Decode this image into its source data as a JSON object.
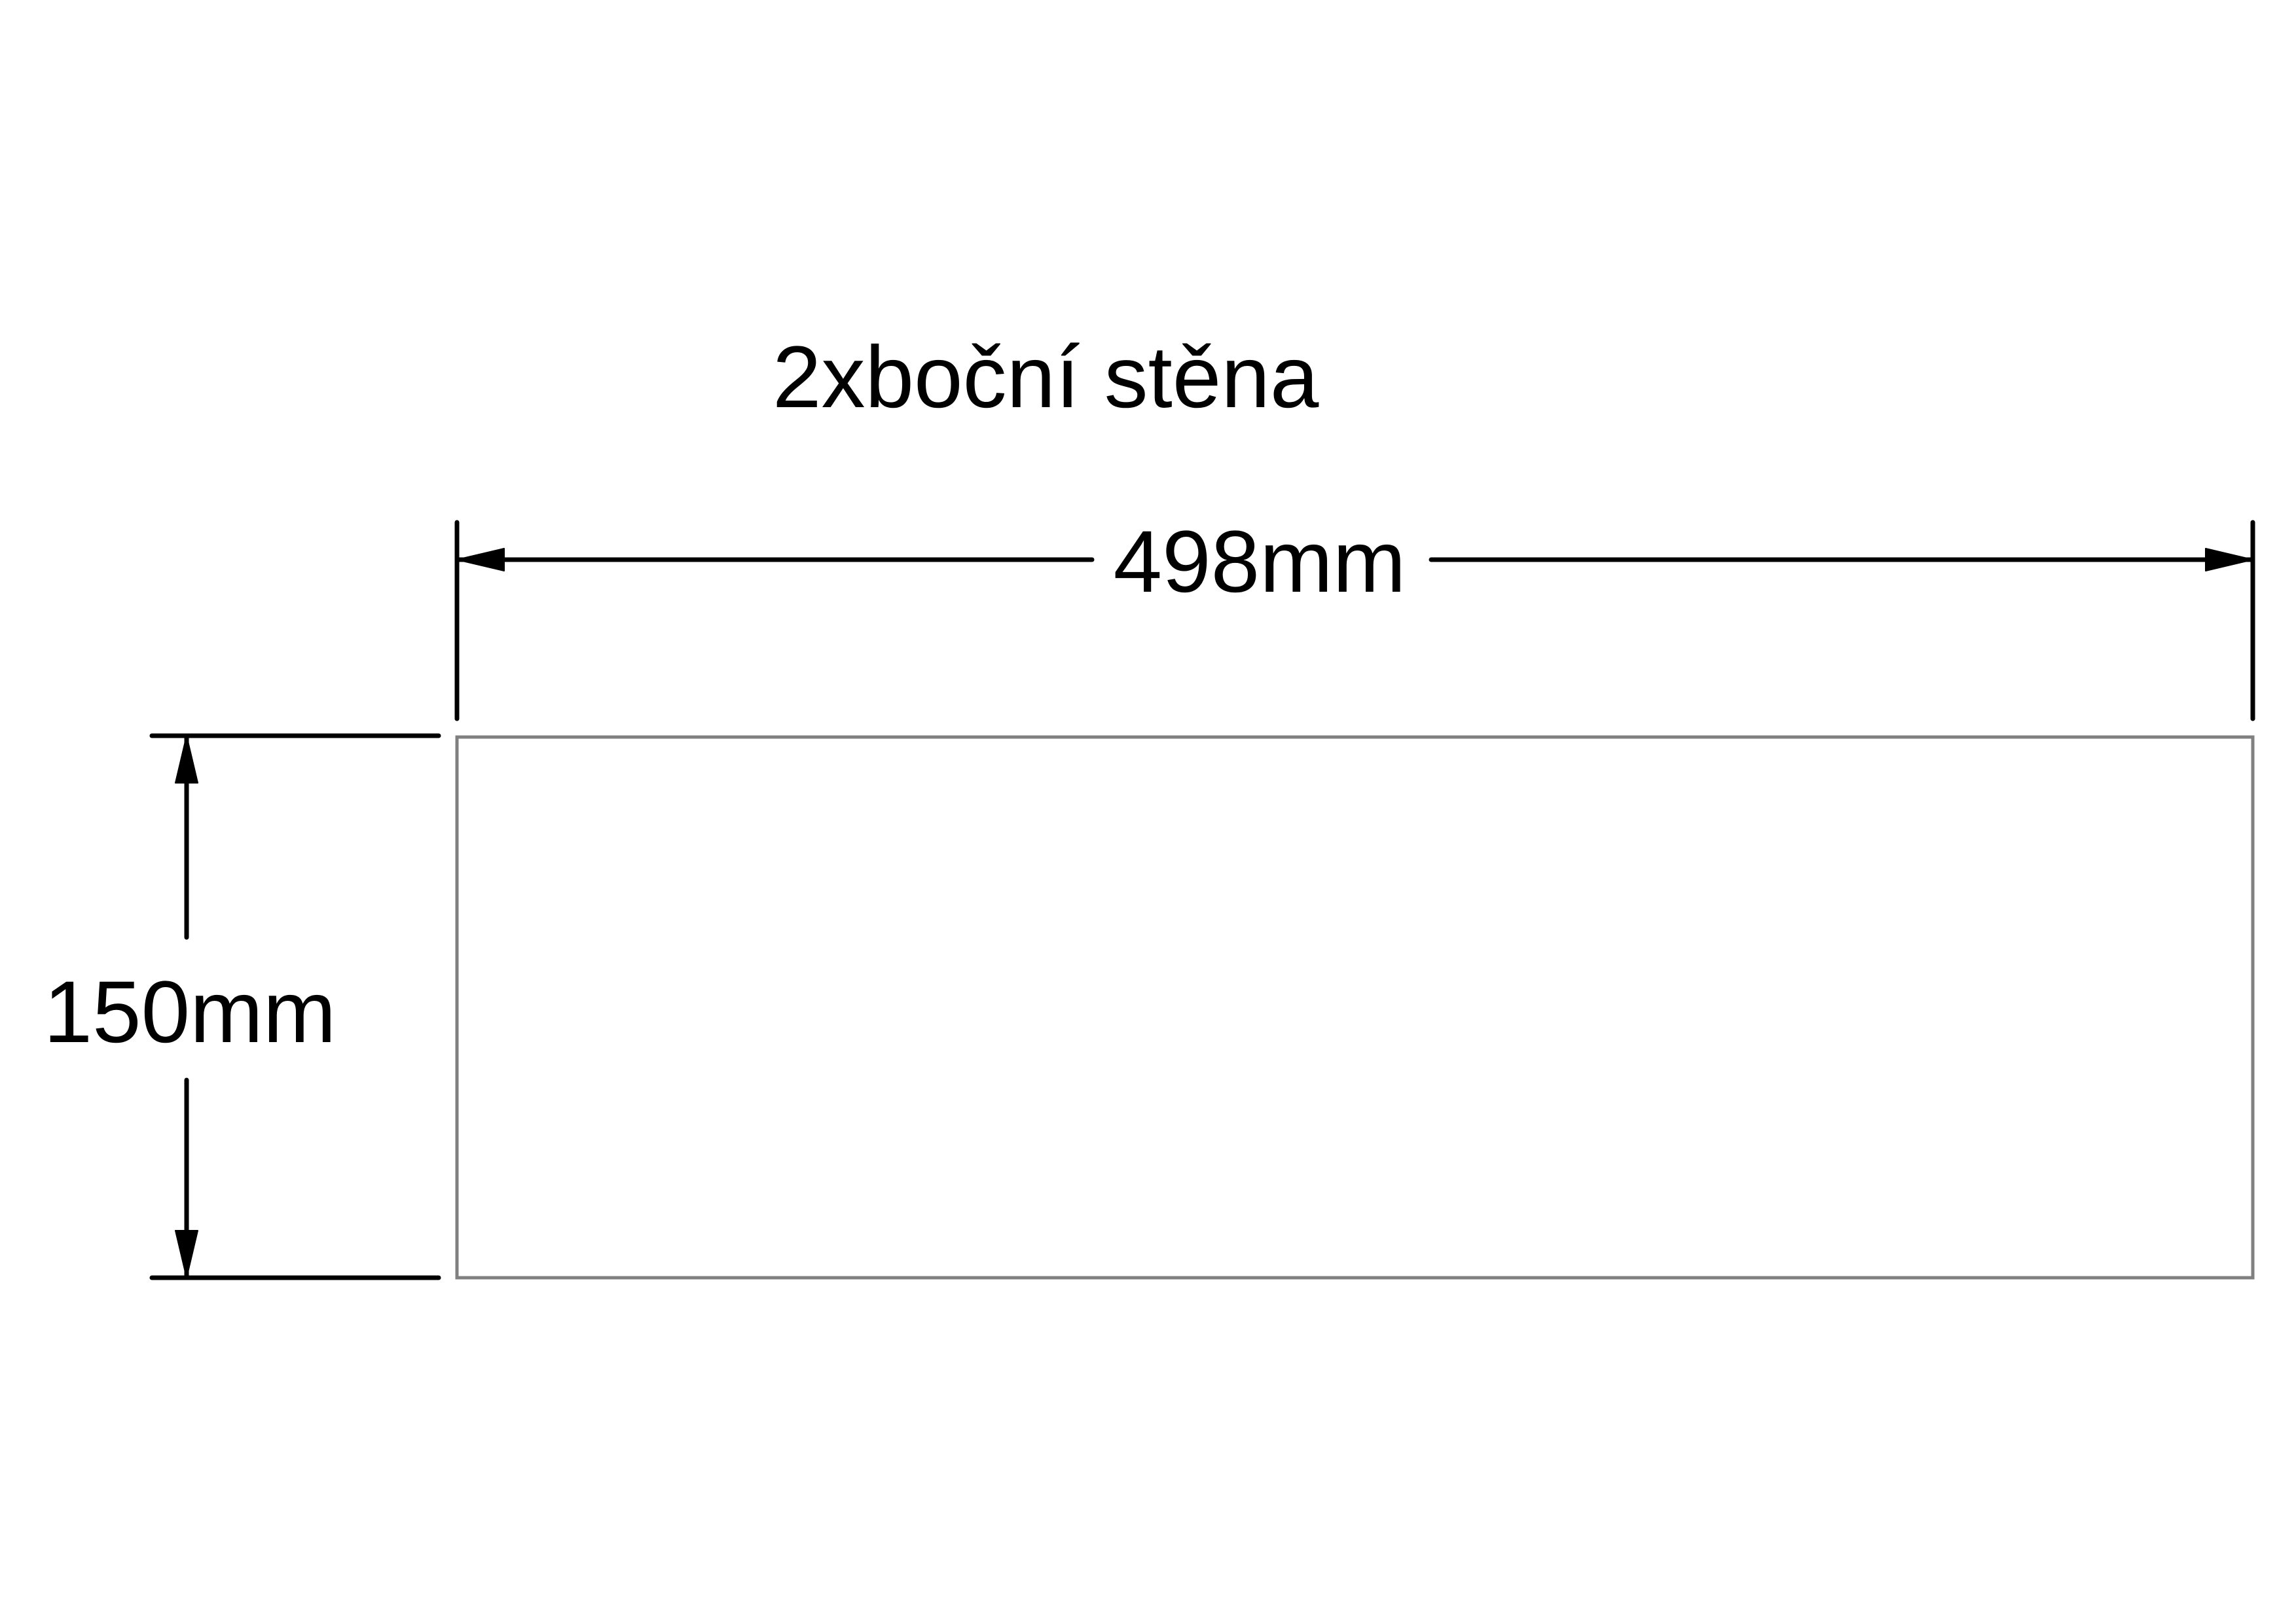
{
  "title": "2xboční stěna",
  "dimensions": {
    "width_label": "498mm",
    "height_label": "150mm"
  },
  "part": {
    "width_mm": 498,
    "height_mm": 150
  }
}
